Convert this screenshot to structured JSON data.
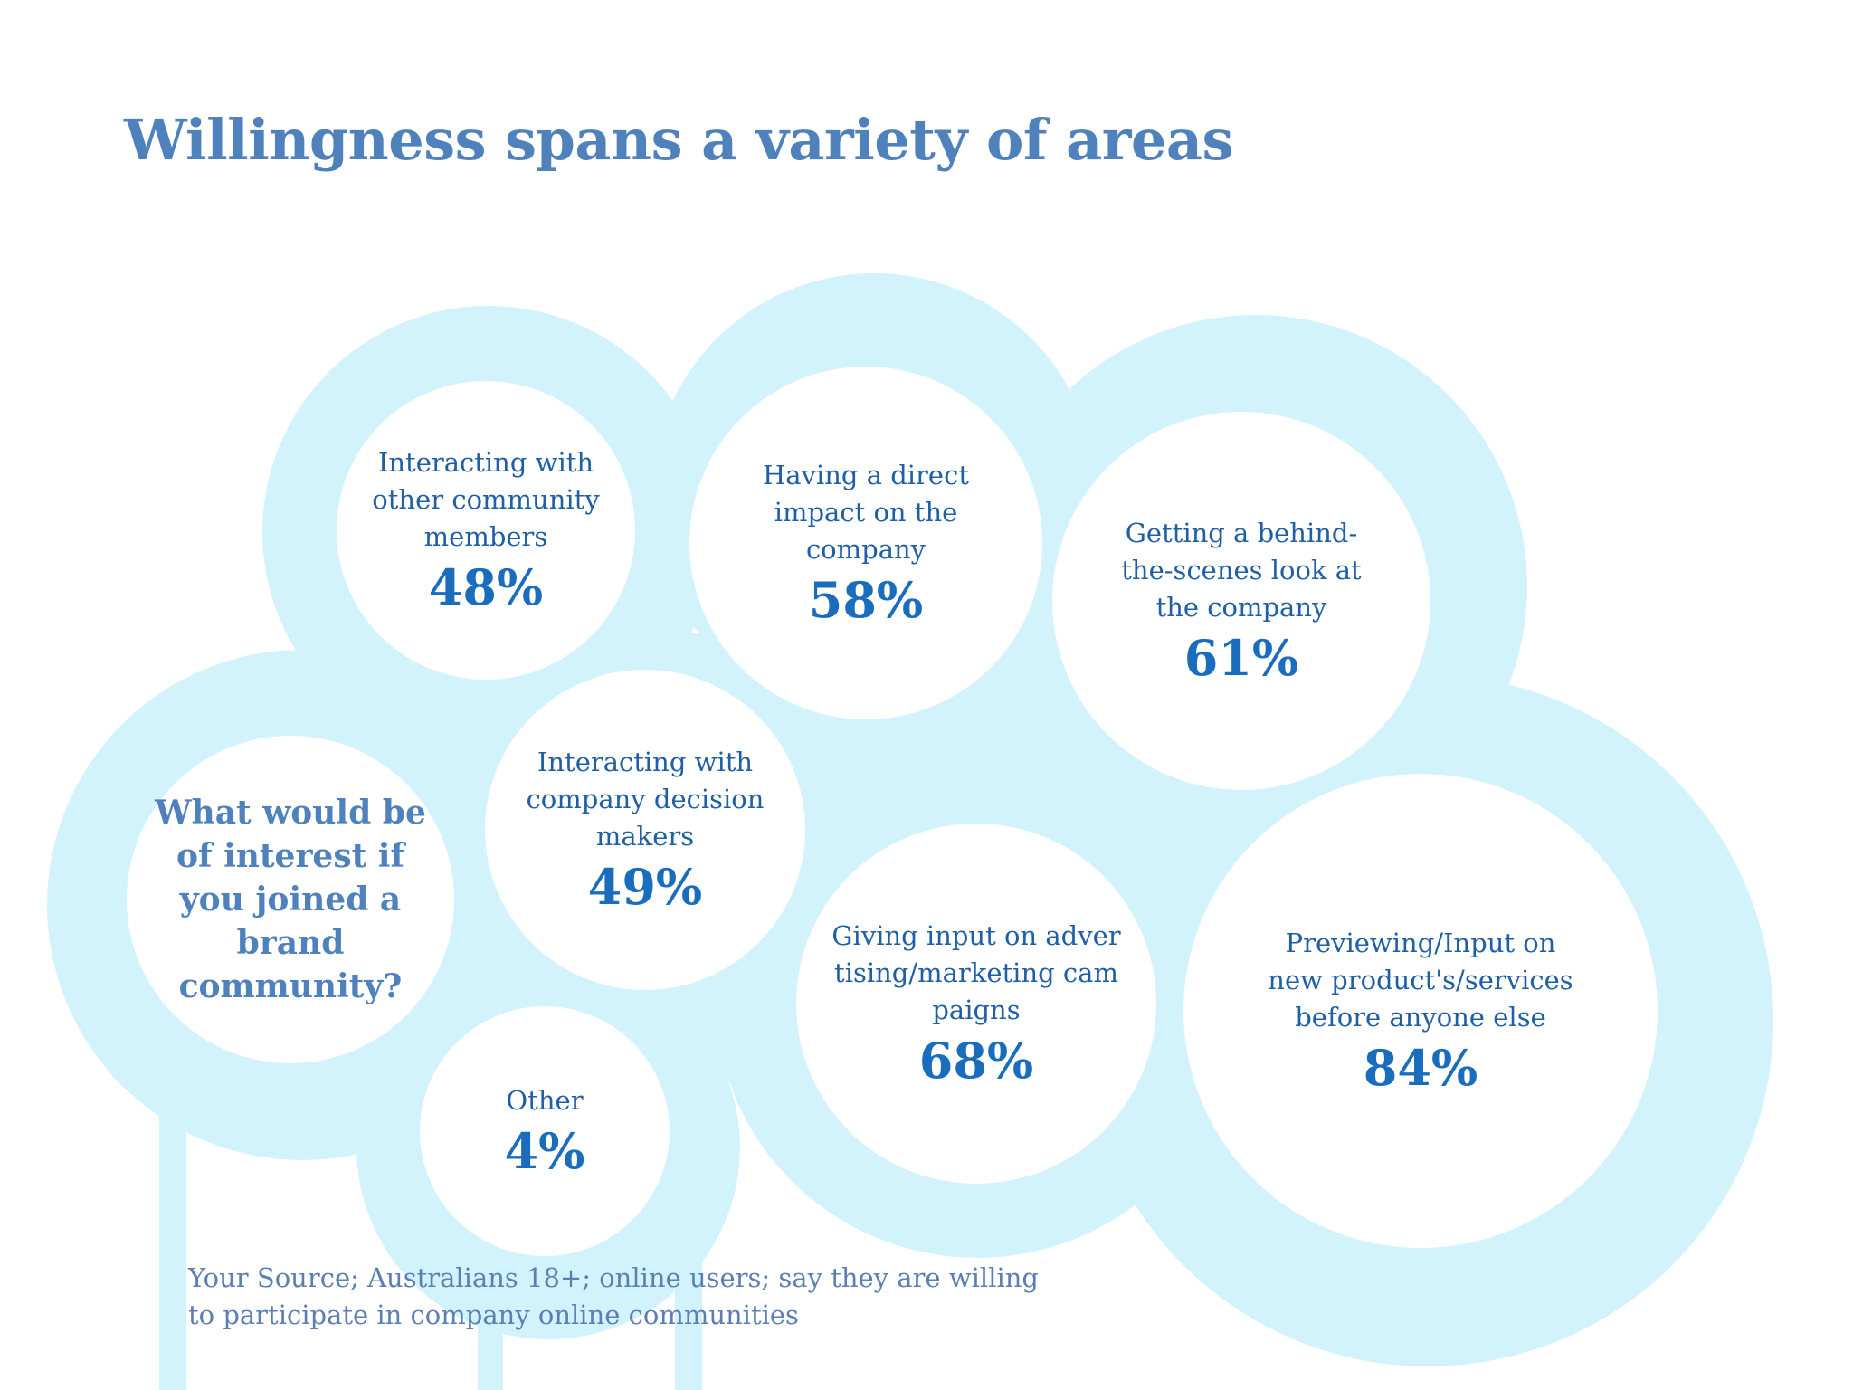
{
  "title": "Willingness spans a variety of areas",
  "question": "What would be of interest if you joined a brand community?",
  "items": [
    {
      "label": "Interacting with other community members",
      "value": "48%"
    },
    {
      "label": "Having a direct impact on the company",
      "value": "58%"
    },
    {
      "label": "Getting a behind-the-scenes look at the company",
      "value": "61%"
    },
    {
      "label": "Interacting with company decision makers",
      "value": "49%"
    },
    {
      "label": "Giving input on advertising/marketing campaigns",
      "value": "68%"
    },
    {
      "label": "Previewing/Input on new product's/services before anyone else",
      "value": "84%"
    },
    {
      "label": "Other",
      "value": "4%"
    }
  ],
  "source": "Your Source; Australians 18+; online users; say they are willing\nto participate in company online communities",
  "colors": {
    "ring": "#d3f3fc",
    "title": "#4f81bd",
    "value": "#1a6dbd",
    "label": "#1f5fa6"
  }
}
